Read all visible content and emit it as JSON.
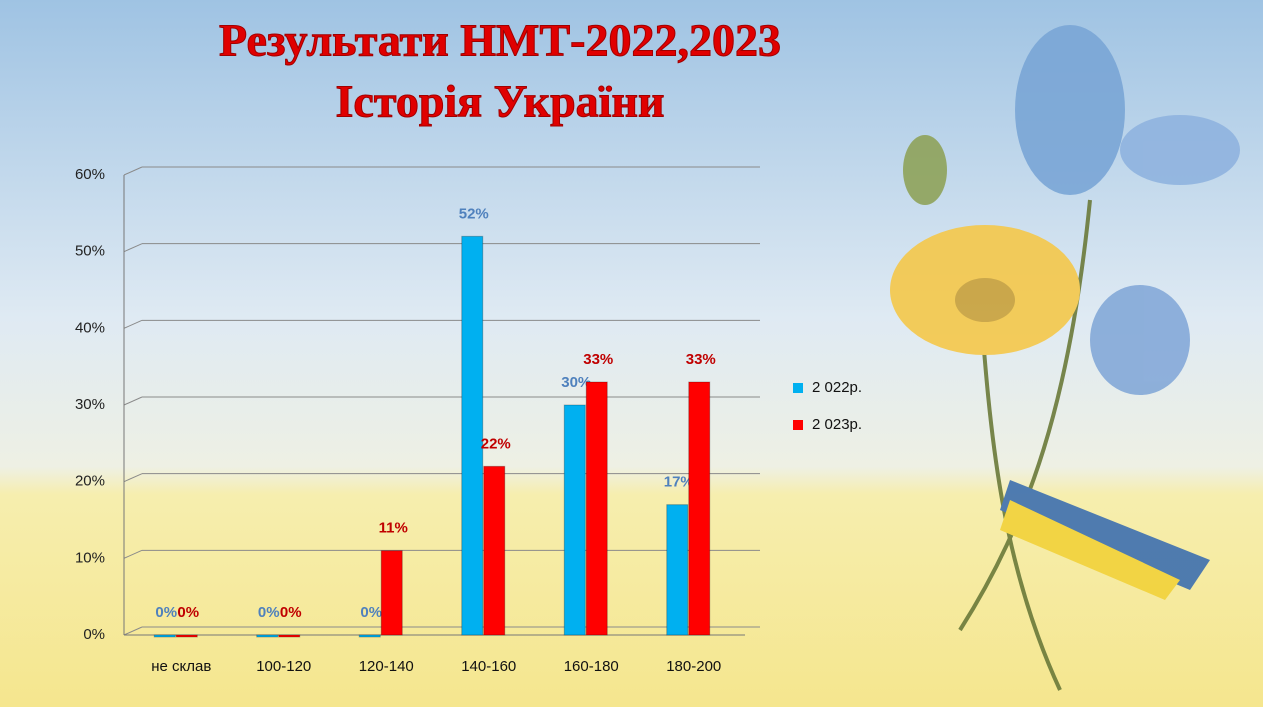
{
  "chart_data": {
    "type": "bar",
    "title": "Результати НМТ-2022,2023",
    "subtitle": "Історія України",
    "categories": [
      "не склав",
      "100-120",
      "120-140",
      "140-160",
      "160-180",
      "180-200"
    ],
    "series": [
      {
        "name": "2 022р.",
        "color": "#00b0f0",
        "values": [
          0,
          0,
          0,
          52,
          30,
          17
        ],
        "value_labels": [
          "0%",
          "0%",
          "0%",
          "52%",
          "30%",
          "17%"
        ]
      },
      {
        "name": "2 023р.",
        "color": "#ff0000",
        "values": [
          0,
          0,
          11,
          22,
          33,
          33
        ],
        "value_labels": [
          "0%",
          "0%",
          "11%",
          "22%",
          "33%",
          "33%"
        ]
      }
    ],
    "ylim": [
      0,
      60
    ],
    "yticks": [
      {
        "value": 0,
        "label": "0%"
      },
      {
        "value": 10,
        "label": "10%"
      },
      {
        "value": 20,
        "label": "20%"
      },
      {
        "value": 30,
        "label": "30%"
      },
      {
        "value": 40,
        "label": "40%"
      },
      {
        "value": 50,
        "label": "50%"
      },
      {
        "value": 60,
        "label": "60%"
      }
    ],
    "grid": true,
    "legend": "right"
  }
}
